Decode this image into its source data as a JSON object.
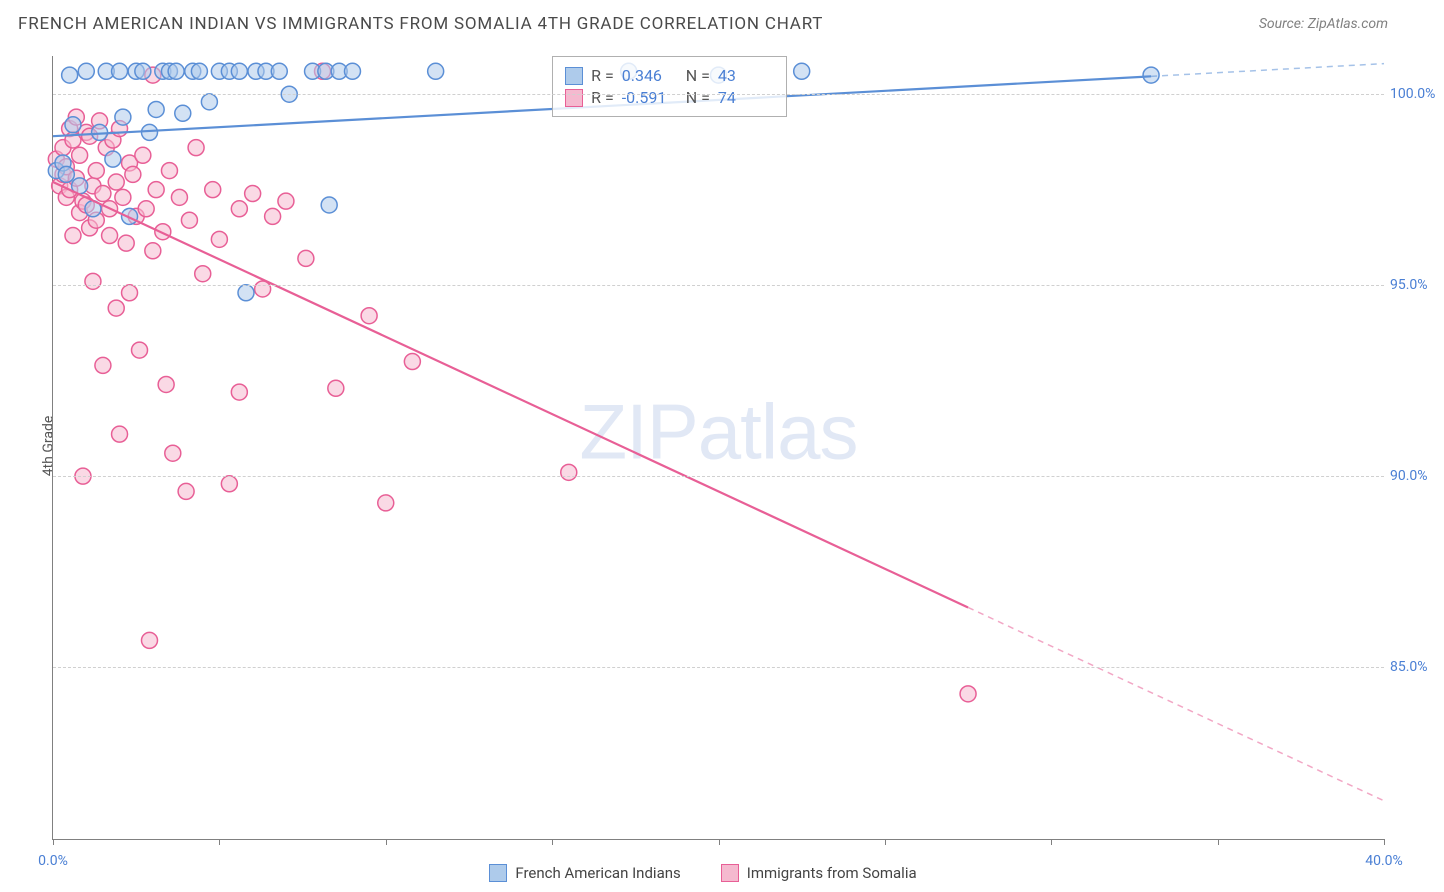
{
  "header": {
    "title": "FRENCH AMERICAN INDIAN VS IMMIGRANTS FROM SOMALIA 4TH GRADE CORRELATION CHART",
    "source": "Source: ZipAtlas.com"
  },
  "watermark": {
    "part1": "ZIP",
    "part2": "atlas"
  },
  "chart": {
    "type": "scatter",
    "ylabel": "4th Grade",
    "background_color": "#ffffff",
    "grid_color": "#d0d0d0",
    "axis_color": "#808080",
    "tick_label_color": "#4a7fd4",
    "label_fontsize": 14,
    "xlim": [
      0,
      40
    ],
    "ylim": [
      80.5,
      101
    ],
    "ytick_values": [
      85,
      90,
      95,
      100
    ],
    "ytick_labels": [
      "85.0%",
      "90.0%",
      "95.0%",
      "100.0%"
    ],
    "xtick_values": [
      0,
      5,
      10,
      15,
      20,
      25,
      30,
      35,
      40
    ],
    "xtick_labels": {
      "0": "0.0%",
      "40": "40.0%"
    },
    "marker_radius": 8,
    "marker_stroke_width": 1.5,
    "line_width": 2.2,
    "series": [
      {
        "id": "fai",
        "label": "French American Indians",
        "fill": "#aecbeb",
        "stroke": "#5b8fd6",
        "fill_opacity": 0.55,
        "R": "0.346",
        "N": "43",
        "regression": {
          "x1": 0,
          "y1": 98.9,
          "x2": 40,
          "y2": 100.8,
          "solid_to_x": 33
        },
        "points": [
          [
            0.1,
            98.0
          ],
          [
            0.3,
            98.2
          ],
          [
            0.4,
            97.9
          ],
          [
            0.5,
            100.5
          ],
          [
            0.6,
            99.2
          ],
          [
            0.8,
            97.6
          ],
          [
            1.0,
            100.6
          ],
          [
            1.2,
            97.0
          ],
          [
            1.4,
            99.0
          ],
          [
            1.6,
            100.6
          ],
          [
            1.8,
            98.3
          ],
          [
            2.0,
            100.6
          ],
          [
            2.1,
            99.4
          ],
          [
            2.3,
            96.8
          ],
          [
            2.5,
            100.6
          ],
          [
            2.7,
            100.6
          ],
          [
            2.9,
            99.0
          ],
          [
            3.1,
            99.6
          ],
          [
            3.3,
            100.6
          ],
          [
            3.5,
            100.6
          ],
          [
            3.7,
            100.6
          ],
          [
            3.9,
            99.5
          ],
          [
            4.2,
            100.6
          ],
          [
            4.4,
            100.6
          ],
          [
            4.7,
            99.8
          ],
          [
            5.0,
            100.6
          ],
          [
            5.3,
            100.6
          ],
          [
            5.6,
            100.6
          ],
          [
            5.8,
            94.8
          ],
          [
            6.1,
            100.6
          ],
          [
            6.4,
            100.6
          ],
          [
            6.8,
            100.6
          ],
          [
            7.1,
            100.0
          ],
          [
            7.8,
            100.6
          ],
          [
            8.2,
            100.6
          ],
          [
            8.3,
            97.1
          ],
          [
            8.6,
            100.6
          ],
          [
            9.0,
            100.6
          ],
          [
            11.5,
            100.6
          ],
          [
            17.3,
            100.6
          ],
          [
            20.0,
            100.5
          ],
          [
            22.5,
            100.6
          ],
          [
            33.0,
            100.5
          ]
        ]
      },
      {
        "id": "som",
        "label": "Immigrants from Somalia",
        "fill": "#f5b9cf",
        "stroke": "#e85f96",
        "fill_opacity": 0.55,
        "R": "-0.591",
        "N": "74",
        "regression": {
          "x1": 0,
          "y1": 97.7,
          "x2": 40,
          "y2": 81.5,
          "solid_to_x": 27.5
        },
        "points": [
          [
            0.1,
            98.3
          ],
          [
            0.2,
            97.6
          ],
          [
            0.3,
            97.9
          ],
          [
            0.3,
            98.6
          ],
          [
            0.4,
            97.3
          ],
          [
            0.4,
            98.1
          ],
          [
            0.5,
            99.1
          ],
          [
            0.5,
            97.5
          ],
          [
            0.6,
            96.3
          ],
          [
            0.6,
            98.8
          ],
          [
            0.7,
            97.8
          ],
          [
            0.7,
            99.4
          ],
          [
            0.8,
            96.9
          ],
          [
            0.8,
            98.4
          ],
          [
            0.9,
            97.2
          ],
          [
            0.9,
            90.0
          ],
          [
            1.0,
            99.0
          ],
          [
            1.0,
            97.1
          ],
          [
            1.1,
            96.5
          ],
          [
            1.1,
            98.9
          ],
          [
            1.2,
            97.6
          ],
          [
            1.2,
            95.1
          ],
          [
            1.3,
            98.0
          ],
          [
            1.3,
            96.7
          ],
          [
            1.4,
            99.3
          ],
          [
            1.5,
            97.4
          ],
          [
            1.5,
            92.9
          ],
          [
            1.6,
            98.6
          ],
          [
            1.7,
            97.0
          ],
          [
            1.7,
            96.3
          ],
          [
            1.8,
            98.8
          ],
          [
            1.9,
            94.4
          ],
          [
            1.9,
            97.7
          ],
          [
            2.0,
            91.1
          ],
          [
            2.0,
            99.1
          ],
          [
            2.1,
            97.3
          ],
          [
            2.2,
            96.1
          ],
          [
            2.3,
            98.2
          ],
          [
            2.3,
            94.8
          ],
          [
            2.4,
            97.9
          ],
          [
            2.5,
            96.8
          ],
          [
            2.6,
            93.3
          ],
          [
            2.7,
            98.4
          ],
          [
            2.8,
            97.0
          ],
          [
            2.9,
            85.7
          ],
          [
            3.0,
            95.9
          ],
          [
            3.0,
            100.5
          ],
          [
            3.1,
            97.5
          ],
          [
            3.3,
            96.4
          ],
          [
            3.4,
            92.4
          ],
          [
            3.5,
            98.0
          ],
          [
            3.6,
            90.6
          ],
          [
            3.8,
            97.3
          ],
          [
            4.0,
            89.6
          ],
          [
            4.1,
            96.7
          ],
          [
            4.3,
            98.6
          ],
          [
            4.5,
            95.3
          ],
          [
            4.8,
            97.5
          ],
          [
            5.0,
            96.2
          ],
          [
            5.3,
            89.8
          ],
          [
            5.6,
            97.0
          ],
          [
            5.6,
            92.2
          ],
          [
            6.0,
            97.4
          ],
          [
            6.3,
            94.9
          ],
          [
            6.6,
            96.8
          ],
          [
            7.0,
            97.2
          ],
          [
            7.6,
            95.7
          ],
          [
            8.1,
            100.6
          ],
          [
            8.5,
            92.3
          ],
          [
            9.5,
            94.2
          ],
          [
            10.0,
            89.3
          ],
          [
            10.8,
            93.0
          ],
          [
            15.5,
            90.1
          ],
          [
            27.5,
            84.3
          ]
        ]
      }
    ]
  },
  "stats_box": {
    "R_prefix": "R =",
    "N_prefix": "N ="
  },
  "legend": {
    "series1": "French American Indians",
    "series2": "Immigrants from Somalia"
  }
}
